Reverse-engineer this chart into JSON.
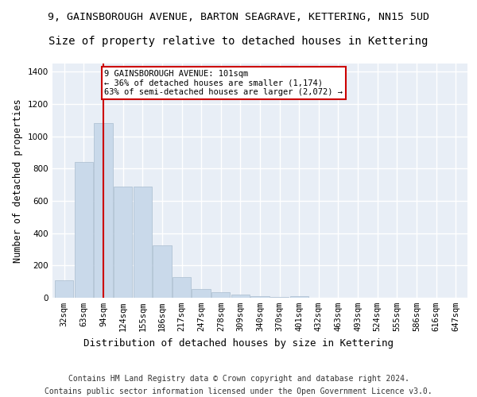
{
  "title_line1": "9, GAINSBOROUGH AVENUE, BARTON SEAGRAVE, KETTERING, NN15 5UD",
  "title_line2": "Size of property relative to detached houses in Kettering",
  "xlabel": "Distribution of detached houses by size in Kettering",
  "ylabel": "Number of detached properties",
  "footer_line1": "Contains HM Land Registry data © Crown copyright and database right 2024.",
  "footer_line2": "Contains public sector information licensed under the Open Government Licence v3.0.",
  "categories": [
    "32sqm",
    "63sqm",
    "94sqm",
    "124sqm",
    "155sqm",
    "186sqm",
    "217sqm",
    "247sqm",
    "278sqm",
    "309sqm",
    "340sqm",
    "370sqm",
    "401sqm",
    "432sqm",
    "463sqm",
    "493sqm",
    "524sqm",
    "555sqm",
    "586sqm",
    "616sqm",
    "647sqm"
  ],
  "values": [
    107,
    840,
    1080,
    690,
    690,
    325,
    130,
    55,
    32,
    20,
    12,
    5,
    10,
    0,
    0,
    0,
    0,
    0,
    0,
    0,
    0
  ],
  "bar_color": "#c9d9ea",
  "bar_edge_color": "#aabdcf",
  "annotation_text_line1": "9 GAINSBOROUGH AVENUE: 101sqm",
  "annotation_text_line2": "← 36% of detached houses are smaller (1,174)",
  "annotation_text_line3": "63% of semi-detached houses are larger (2,072) →",
  "annotation_box_facecolor": "#ffffff",
  "annotation_box_edgecolor": "#cc0000",
  "vline_color": "#cc0000",
  "vline_x": 2.0,
  "ylim": [
    0,
    1450
  ],
  "yticks": [
    0,
    200,
    400,
    600,
    800,
    1000,
    1200,
    1400
  ],
  "background_color": "#e8eef6",
  "grid_color": "#ffffff",
  "title1_fontsize": 9.5,
  "title2_fontsize": 10,
  "xlabel_fontsize": 9,
  "ylabel_fontsize": 8.5,
  "tick_fontsize": 7.5,
  "annot_fontsize": 7.5,
  "footer_fontsize": 7
}
